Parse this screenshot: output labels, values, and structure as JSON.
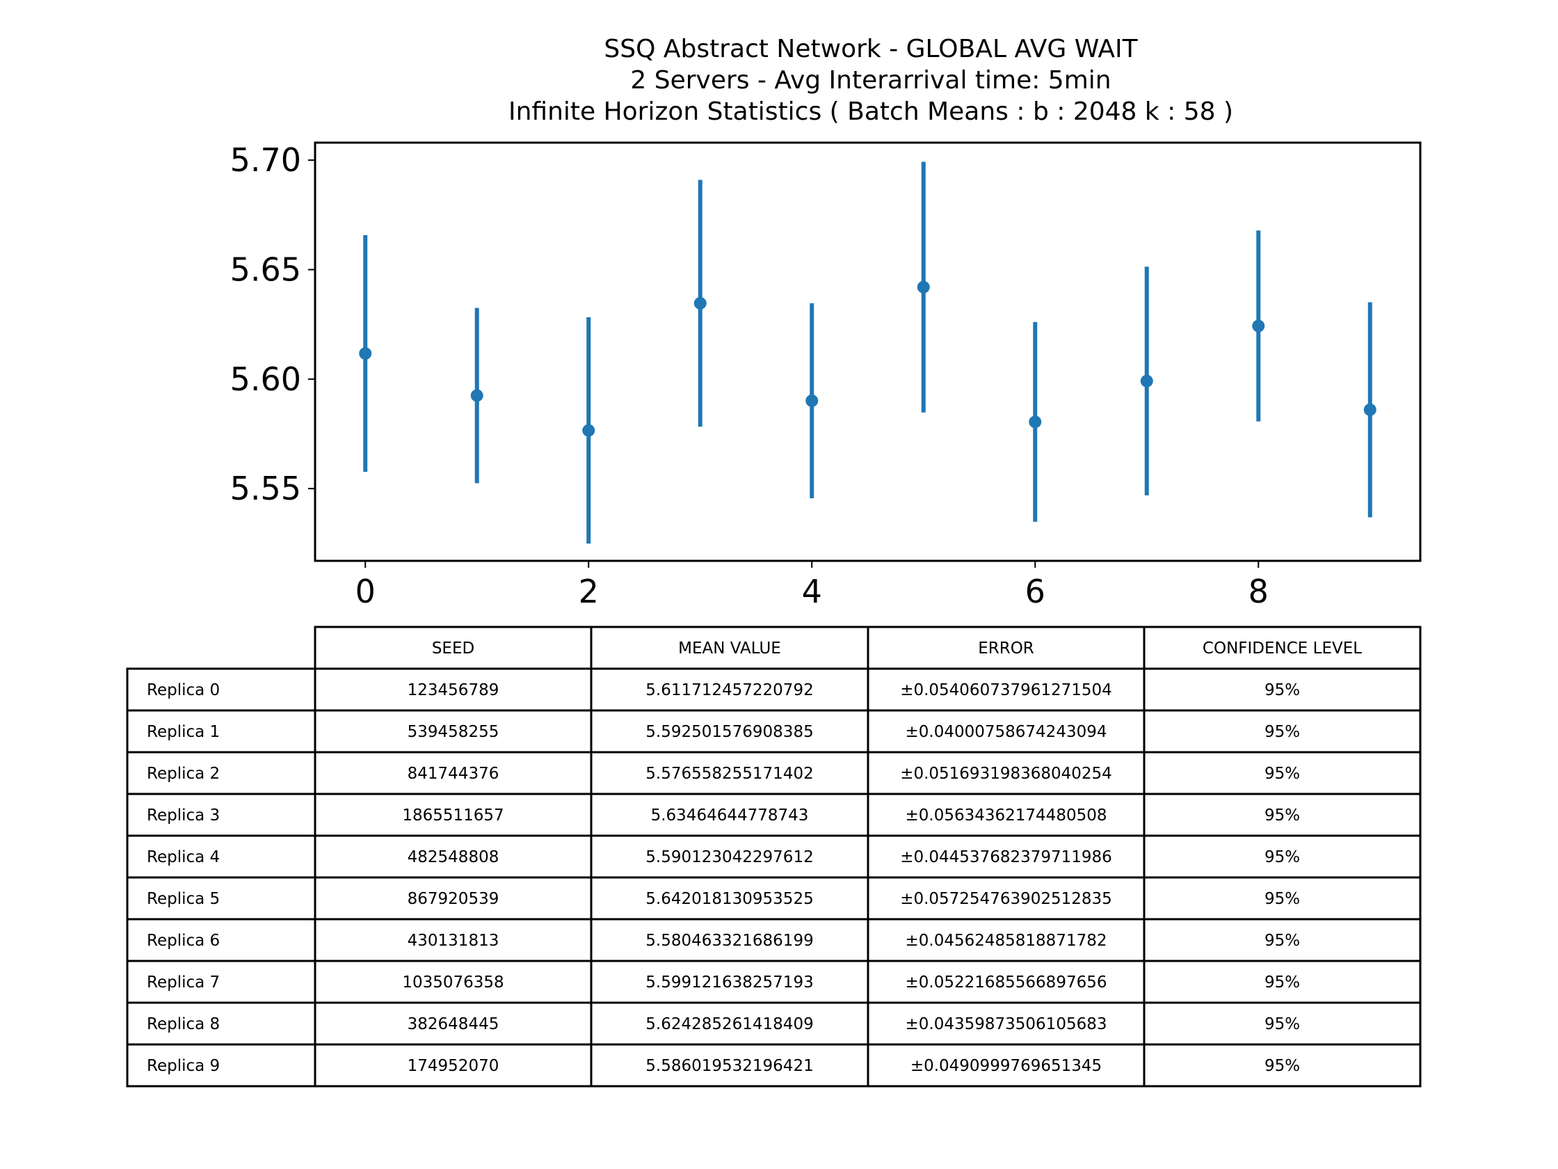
{
  "chart_data": {
    "type": "scatter",
    "title_lines": [
      "SSQ Abstract Network - GLOBAL AVG WAIT",
      "2 Servers -  Avg Interarrival time: 5min",
      "Infinite Horizon Statistics ( Batch Means : b : 2048  k : 58 )"
    ],
    "xlabel": "",
    "ylabel": "",
    "xlim": [
      -0.45,
      9.45
    ],
    "ylim": [
      5.517,
      5.708
    ],
    "xticks": [
      0,
      2,
      4,
      6,
      8
    ],
    "yticks": [
      5.55,
      5.6,
      5.65,
      5.7
    ],
    "ytick_labels": [
      "5.55",
      "5.60",
      "5.65",
      "5.70"
    ],
    "grid": false,
    "series": [
      {
        "color": "#1f77b4",
        "x": [
          0,
          1,
          2,
          3,
          4,
          5,
          6,
          7,
          8,
          9
        ],
        "y": [
          5.611712457220792,
          5.592501576908385,
          5.576558255171402,
          5.63464644778743,
          5.590123042297612,
          5.642018130953525,
          5.580463321686199,
          5.599121638257193,
          5.624285261418409,
          5.586019532196421
        ],
        "error": [
          0.054060737961271504,
          0.04000758674243094,
          0.051693198368040254,
          0.05634362174480508,
          0.044537682379711986,
          0.057254763902512835,
          0.04562485818871782,
          0.05221685566897656,
          0.04359873506105683,
          0.0490999769651345
        ]
      }
    ],
    "table": {
      "columns": [
        "SEED",
        "MEAN VALUE",
        "ERROR",
        "CONFIDENCE LEVEL"
      ],
      "rows": [
        {
          "label": "Replica 0",
          "cells": [
            "123456789",
            "5.611712457220792",
            "±0.054060737961271504",
            "95%"
          ]
        },
        {
          "label": "Replica 1",
          "cells": [
            "539458255",
            "5.592501576908385",
            "±0.04000758674243094",
            "95%"
          ]
        },
        {
          "label": "Replica 2",
          "cells": [
            "841744376",
            "5.576558255171402",
            "±0.051693198368040254",
            "95%"
          ]
        },
        {
          "label": "Replica 3",
          "cells": [
            "1865511657",
            "5.63464644778743",
            "±0.05634362174480508",
            "95%"
          ]
        },
        {
          "label": "Replica 4",
          "cells": [
            "482548808",
            "5.590123042297612",
            "±0.044537682379711986",
            "95%"
          ]
        },
        {
          "label": "Replica 5",
          "cells": [
            "867920539",
            "5.642018130953525",
            "±0.057254763902512835",
            "95%"
          ]
        },
        {
          "label": "Replica 6",
          "cells": [
            "430131813",
            "5.580463321686199",
            "±0.04562485818871782",
            "95%"
          ]
        },
        {
          "label": "Replica 7",
          "cells": [
            "1035076358",
            "5.599121638257193",
            "±0.05221685566897656",
            "95%"
          ]
        },
        {
          "label": "Replica 8",
          "cells": [
            "382648445",
            "5.624285261418409",
            "±0.04359873506105683",
            "95%"
          ]
        },
        {
          "label": "Replica 9",
          "cells": [
            "174952070",
            "5.586019532196421",
            "±0.0490999769651345",
            "95%"
          ]
        }
      ]
    }
  }
}
